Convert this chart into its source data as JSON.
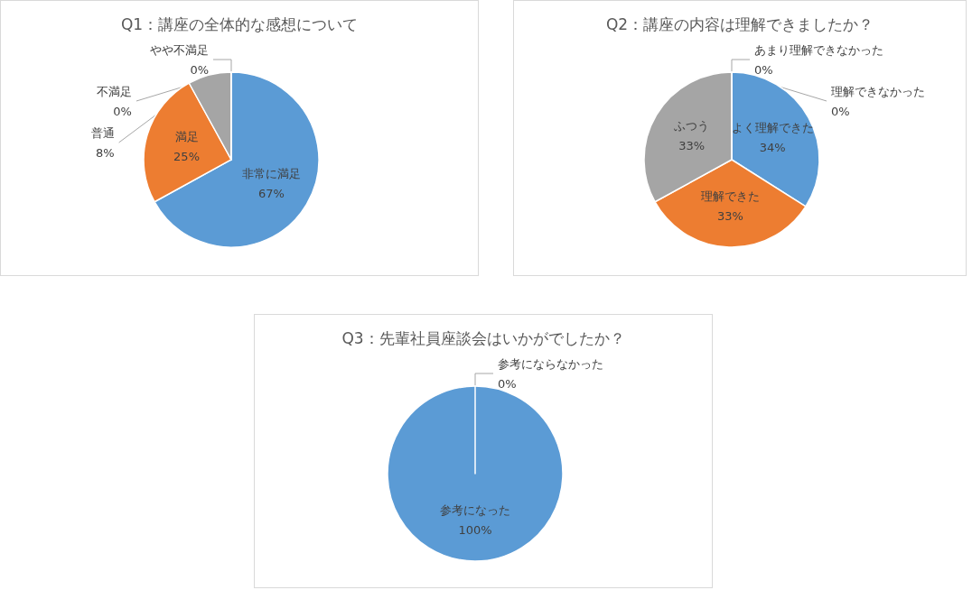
{
  "chart_data": [
    {
      "type": "pie",
      "title": "Q1：講座の全体的な感想について",
      "categories": [
        "非常に満足",
        "満足",
        "普通",
        "やや不満足",
        "不満足"
      ],
      "values": [
        67,
        25,
        8,
        0,
        0
      ],
      "value_labels": [
        "67%",
        "25%",
        "8%",
        "0%",
        "0%"
      ],
      "colors": [
        "#5b9bd5",
        "#ed7d31",
        "#a5a5a5",
        "#ffc000",
        "#4472c4"
      ],
      "legend": false
    },
    {
      "type": "pie",
      "title": "Q2：講座の内容は理解できましたか？",
      "categories": [
        "よく理解できた",
        "理解できた",
        "ふつう",
        "あまり理解できなかった",
        "理解できなかった"
      ],
      "values": [
        34,
        33,
        33,
        0,
        0
      ],
      "value_labels": [
        "34%",
        "33%",
        "33%",
        "0%",
        "0%"
      ],
      "colors": [
        "#5b9bd5",
        "#ed7d31",
        "#a5a5a5",
        "#ffc000",
        "#4472c4"
      ],
      "legend": false
    },
    {
      "type": "pie",
      "title": "Q3：先輩社員座談会はいかがでしたか？",
      "categories": [
        "参考になった",
        "参考にならなかった"
      ],
      "values": [
        100,
        0
      ],
      "value_labels": [
        "100%",
        "0%"
      ],
      "colors": [
        "#5b9bd5",
        "#ed7d31"
      ],
      "legend": false
    }
  ]
}
